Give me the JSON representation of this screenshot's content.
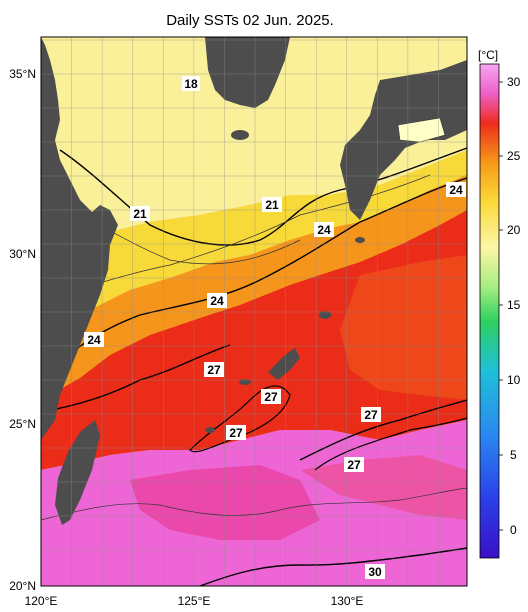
{
  "title": "Daily SSTs 02 Jun. 2025.",
  "lat_ticks": [
    {
      "label": "35°N",
      "value": 35
    },
    {
      "label": "30°N",
      "value": 30
    },
    {
      "label": "25°N",
      "value": 25
    },
    {
      "label": "20°N",
      "value": 20
    }
  ],
  "lon_ticks": [
    {
      "label": "120°E",
      "value": 120
    },
    {
      "label": "125°E",
      "value": 125
    },
    {
      "label": "130°E",
      "value": 130
    }
  ],
  "colorbar": {
    "unit": "[°C]",
    "ticks": [
      "30",
      "25",
      "20",
      "15",
      "10",
      "5",
      "0"
    ]
  },
  "contour_labels": [
    "18",
    "21",
    "21",
    "24",
    "24",
    "24",
    "24",
    "27",
    "27",
    "27",
    "27",
    "27",
    "30"
  ],
  "colors": {
    "land": "#4d4d4d",
    "warm_pink": "#ee6ae0",
    "red": "#ea2c18",
    "orange": "#f8a018",
    "yellow": "#fbf29a"
  }
}
